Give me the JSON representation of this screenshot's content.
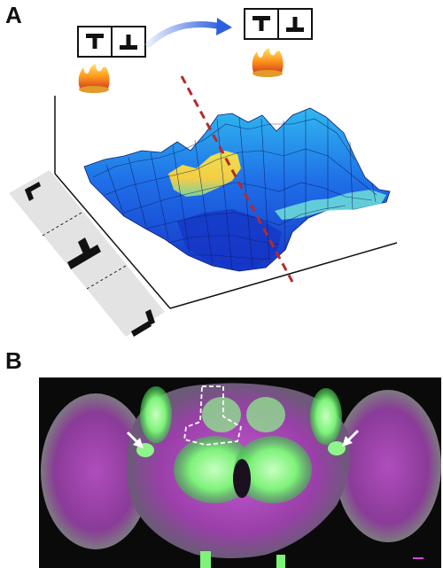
{
  "figure": {
    "panels": [
      {
        "label": "A"
      },
      {
        "label": "B"
      }
    ],
    "panel_a": {
      "pattern_icons_left": [
        "T",
        "⊥"
      ],
      "pattern_icons_right": [
        "T",
        "⊥"
      ],
      "side_icons": [
        "corner-icon",
        "inverted-t-icon",
        "corner-icon"
      ],
      "colors": {
        "surface_low": "#1a3fd8",
        "surface_mid": "#1f8fe8",
        "surface_high": "#f2e040",
        "dashed_line": "#b52a2a",
        "arrow": "#2f5fe0"
      }
    },
    "panel_b": {
      "colors": {
        "background": "#0a0a0a",
        "magenta": "#b14bbf",
        "green": "#7ef27a"
      }
    }
  }
}
